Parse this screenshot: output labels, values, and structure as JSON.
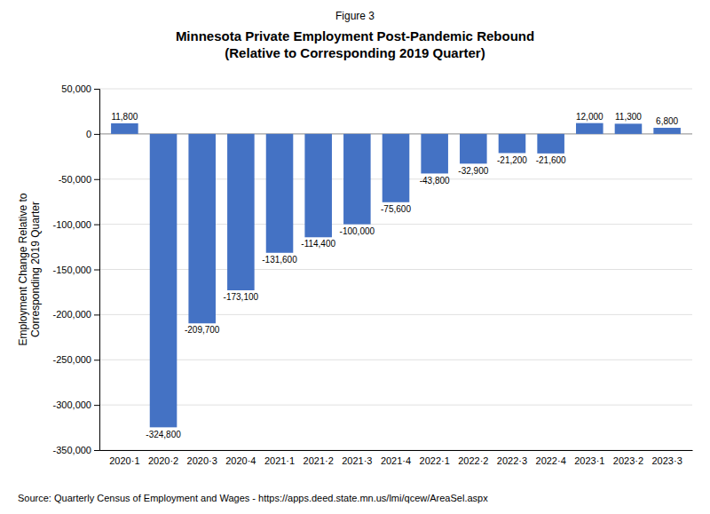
{
  "chart_data": {
    "type": "bar",
    "figure_label": "Figure 3",
    "title": "Minnesota Private Employment Post-Pandemic Rebound\n(Relative to Corresponding 2019 Quarter)",
    "ylabel": "Employment Change Relative to\nCorresponding 2019 Quarter",
    "source": "Source: Quarterly Census of Employment and Wages - https://apps.deed.state.mn.us/lmi/qcew/AreaSel.aspx",
    "categories": [
      "2020·1",
      "2020·2",
      "2020·3",
      "2020·4",
      "2021·1",
      "2021·2",
      "2021·3",
      "2021·4",
      "2022·1",
      "2022·2",
      "2022·3",
      "2022·4",
      "2023·1",
      "2023·2",
      "2023·3"
    ],
    "values": [
      11800,
      -324800,
      -209700,
      -173100,
      -131600,
      -114400,
      -100000,
      -75600,
      -43800,
      -32900,
      -21200,
      -21600,
      12000,
      11300,
      6800
    ],
    "value_labels": [
      "11,800",
      "-324,800",
      "-209,700",
      "-173,100",
      "-131,600",
      "-114,400",
      "-100,000",
      "-75,600",
      "-43,800",
      "-32,900",
      "-21,200",
      "-21,600",
      "12,000",
      "11,300",
      "6,800"
    ],
    "data_labels": true,
    "color": "#4472C4",
    "ylim": [
      -350000,
      50000
    ],
    "yticks": [
      {
        "value": 50000,
        "label": "50,000"
      },
      0,
      {
        "value": -50000,
        "label": "-50,000"
      },
      {
        "value": -100000,
        "label": "-100,000"
      },
      {
        "value": -150000,
        "label": "-150,000"
      },
      {
        "value": -200000,
        "label": "-200,000"
      },
      {
        "value": -250000,
        "label": "-250,000"
      },
      {
        "value": -300000,
        "label": "-300,000"
      },
      {
        "value": -350000,
        "label": "-350,000"
      }
    ],
    "grid": true
  }
}
